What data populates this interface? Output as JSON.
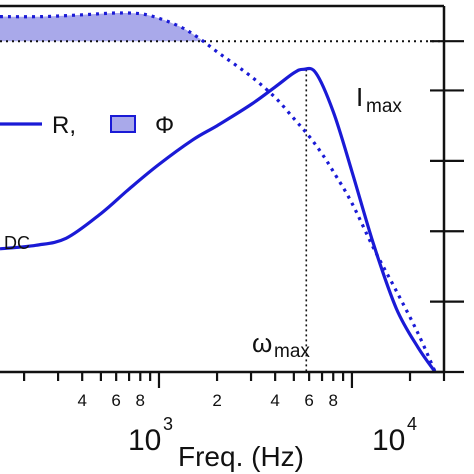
{
  "chart_data": {
    "type": "line",
    "x_scale": "log",
    "xlim": [
      150,
      30000
    ],
    "ylim": [
      0,
      1.04
    ],
    "grid": false,
    "x_ticks": [
      {
        "value": 400,
        "label": "4"
      },
      {
        "value": 600,
        "label": "6"
      },
      {
        "value": 800,
        "label": "8"
      },
      {
        "value": 2000,
        "label": "2"
      },
      {
        "value": 4000,
        "label": "4"
      },
      {
        "value": 6000,
        "label": "6"
      },
      {
        "value": 8000,
        "label": "8"
      }
    ],
    "x_decades": [
      {
        "value": 1000,
        "base": "10",
        "exponent": "3"
      },
      {
        "value": 10000,
        "base": "10",
        "exponent": "4"
      }
    ],
    "xlabel": "Freq. (Hz)",
    "series": [
      {
        "name": "R,",
        "style": "solid",
        "color": "#1a1ad6",
        "points": [
          [
            150,
            0.35
          ],
          [
            230,
            0.36
          ],
          [
            330,
            0.38
          ],
          [
            500,
            0.45
          ],
          [
            700,
            0.52
          ],
          [
            1000,
            0.59
          ],
          [
            1500,
            0.66
          ],
          [
            2000,
            0.7
          ],
          [
            3000,
            0.76
          ],
          [
            4000,
            0.81
          ],
          [
            5000,
            0.85
          ],
          [
            5600,
            0.86
          ],
          [
            6500,
            0.85
          ],
          [
            8000,
            0.74
          ],
          [
            10000,
            0.57
          ],
          [
            13000,
            0.36
          ],
          [
            17000,
            0.18
          ],
          [
            22000,
            0.07
          ],
          [
            27000,
            0.0
          ]
        ]
      },
      {
        "name": "",
        "style": "dotted",
        "color": "#1a1ad6",
        "points": [
          [
            150,
            1.01
          ],
          [
            250,
            1.01
          ],
          [
            400,
            1.015
          ],
          [
            600,
            1.02
          ],
          [
            800,
            1.018
          ],
          [
            1000,
            1.005
          ],
          [
            1300,
            0.98
          ],
          [
            1600,
            0.95
          ],
          [
            2000,
            0.91
          ],
          [
            3000,
            0.84
          ],
          [
            4000,
            0.78
          ],
          [
            5000,
            0.72
          ],
          [
            6000,
            0.67
          ],
          [
            7000,
            0.62
          ],
          [
            8000,
            0.57
          ],
          [
            10000,
            0.48
          ],
          [
            13000,
            0.35
          ],
          [
            17000,
            0.23
          ],
          [
            22000,
            0.11
          ],
          [
            27000,
            0.0
          ]
        ]
      }
    ],
    "phase_area": {
      "name": "Φ",
      "fill": "#a9a9ea",
      "baseline": 0.94
    },
    "reference_line": {
      "y": 0.94,
      "style": "dotted"
    },
    "marker_line": {
      "x": 5800,
      "y_top": 0.86,
      "style": "dotted"
    },
    "y_ticks": [
      0.0,
      0.2,
      0.4,
      0.6,
      0.8
    ],
    "legend": {
      "placement": "center-left",
      "items": [
        {
          "label": "R,",
          "kind": "line"
        },
        {
          "label": "Φ",
          "kind": "patch"
        }
      ]
    },
    "annotations": [
      {
        "id": "dc",
        "text": "DC"
      },
      {
        "id": "imax",
        "base": "I",
        "sub": "max"
      },
      {
        "id": "wmax",
        "base": "ω",
        "sub": "max"
      }
    ]
  }
}
